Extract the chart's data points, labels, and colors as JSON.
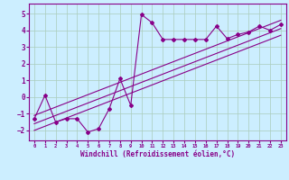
{
  "bg_color": "#cceeff",
  "line_color": "#880088",
  "grid_color": "#aaccbb",
  "xlabel": "Windchill (Refroidissement éolien,°C)",
  "xlim": [
    -0.5,
    23.5
  ],
  "ylim": [
    -2.6,
    5.6
  ],
  "xticks": [
    0,
    1,
    2,
    3,
    4,
    5,
    6,
    7,
    8,
    9,
    10,
    11,
    12,
    13,
    14,
    15,
    16,
    17,
    18,
    19,
    20,
    21,
    22,
    23
  ],
  "yticks": [
    -2,
    -1,
    0,
    1,
    2,
    3,
    4,
    5
  ],
  "scatter_x": [
    0,
    1,
    2,
    3,
    4,
    5,
    6,
    7,
    8,
    9,
    10,
    11,
    12,
    13,
    14,
    15,
    16,
    17,
    18,
    19,
    20,
    21,
    22,
    23
  ],
  "scatter_y": [
    -1.3,
    0.1,
    -1.5,
    -1.3,
    -1.3,
    -2.1,
    -1.9,
    -0.7,
    1.1,
    -0.5,
    4.95,
    4.45,
    3.45,
    3.45,
    3.45,
    3.45,
    3.45,
    4.25,
    3.5,
    3.75,
    3.9,
    4.25,
    4.0,
    4.35
  ],
  "reg_lines": [
    {
      "x": [
        0,
        23
      ],
      "y": [
        -2.0,
        3.7
      ]
    },
    {
      "x": [
        0,
        23
      ],
      "y": [
        -1.6,
        4.1
      ]
    },
    {
      "x": [
        0,
        23
      ],
      "y": [
        -1.1,
        4.6
      ]
    }
  ]
}
